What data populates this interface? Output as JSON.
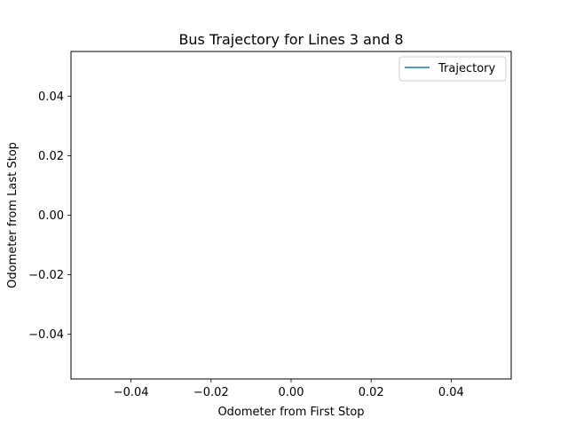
{
  "chart_data": {
    "type": "line",
    "title": "Bus Trajectory for Lines 3 and 8",
    "xlabel": "Odometer from First Stop",
    "ylabel": "Odometer from Last Stop",
    "xlim": [
      -0.055,
      0.055
    ],
    "ylim": [
      -0.055,
      0.055
    ],
    "xticks": [
      -0.04,
      -0.02,
      0.0,
      0.02,
      0.04
    ],
    "yticks": [
      -0.04,
      -0.02,
      0.0,
      0.02,
      0.04
    ],
    "xtick_labels": [
      "−0.04",
      "−0.02",
      "0.00",
      "0.02",
      "0.04"
    ],
    "ytick_labels": [
      "−0.04",
      "−0.02",
      "0.00",
      "0.02",
      "0.04"
    ],
    "grid": false,
    "legend_position": "top-right",
    "series": [
      {
        "name": "Trajectory",
        "color": "#1f77b4",
        "x": [],
        "y": []
      }
    ]
  }
}
